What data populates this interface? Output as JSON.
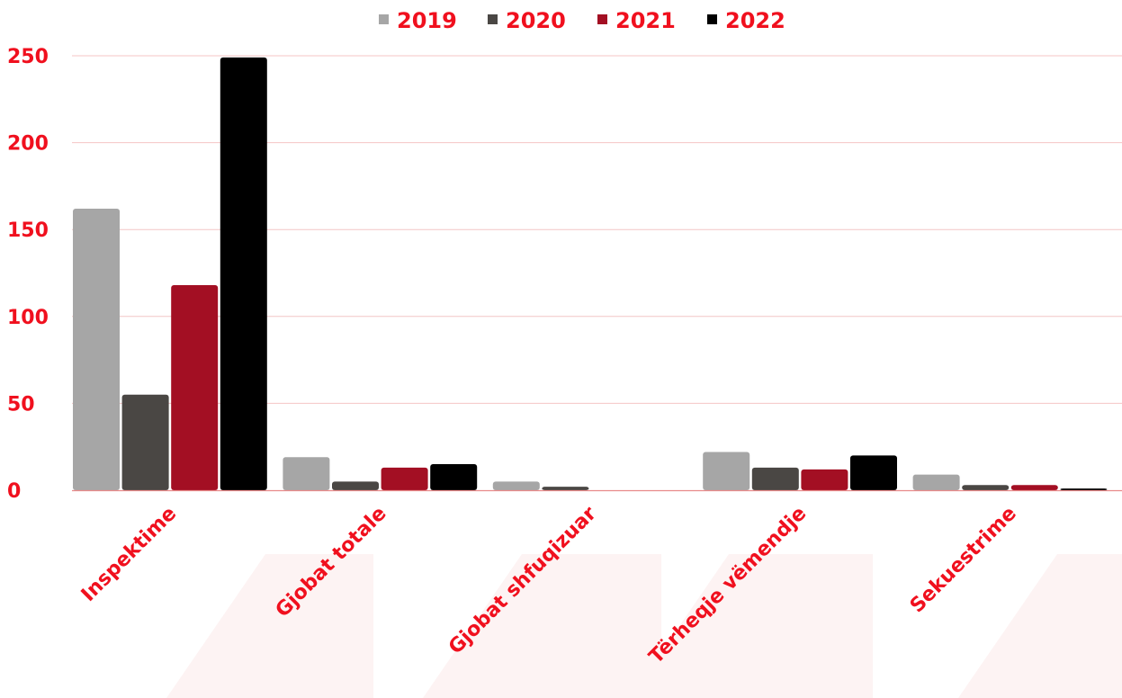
{
  "colors": {
    "text": "#f0101e",
    "gridline": "#f4c5c5",
    "axis": "#e88a8a",
    "watermark": "#fdf3f3"
  },
  "chart_data": {
    "type": "bar",
    "title": "",
    "xlabel": "",
    "ylabel": "",
    "ylim": [
      0,
      250
    ],
    "yticks": [
      0,
      50,
      100,
      150,
      200,
      250
    ],
    "grid": true,
    "legend_position": "top",
    "categories": [
      "Inspektime",
      "Gjobat totale",
      "Gjobat shfuqizuar",
      "Tërheqje vëmendje",
      "Sekuestrime"
    ],
    "series": [
      {
        "name": "2019",
        "color": "#a6a6a6",
        "values": [
          162,
          19,
          5,
          22,
          9
        ]
      },
      {
        "name": "2020",
        "color": "#4a4744",
        "values": [
          55,
          5,
          2,
          13,
          3
        ]
      },
      {
        "name": "2021",
        "color": "#a30f23",
        "values": [
          118,
          13,
          0,
          12,
          3
        ]
      },
      {
        "name": "2022",
        "color": "#000000",
        "values": [
          249,
          15,
          0,
          20,
          1
        ]
      }
    ]
  }
}
